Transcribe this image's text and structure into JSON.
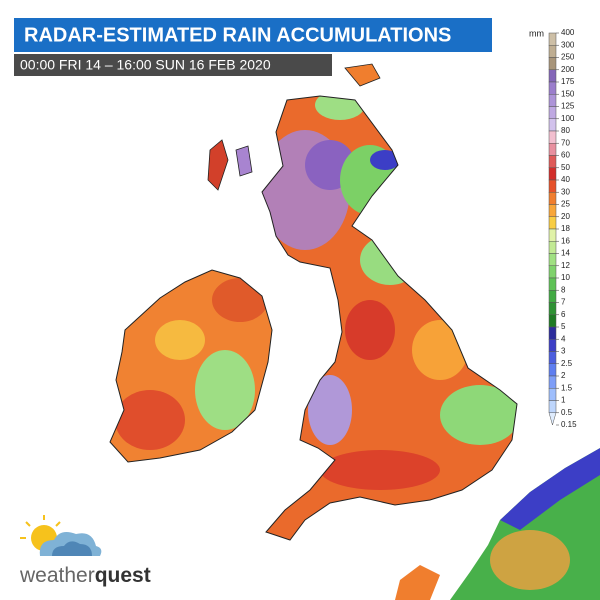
{
  "header": {
    "title": "RADAR-ESTIMATED RAIN ACCUMULATIONS",
    "subtitle": "00:00 FRI 14 – 16:00 SUN 16 FEB 2020"
  },
  "legend": {
    "unit": "mm",
    "labels": [
      "400",
      "300",
      "250",
      "200",
      "175",
      "150",
      "125",
      "100",
      "80",
      "70",
      "60",
      "50",
      "40",
      "30",
      "25",
      "20",
      "18",
      "16",
      "14",
      "12",
      "10",
      "8",
      "7",
      "6",
      "5",
      "4",
      "3",
      "2.5",
      "2",
      "1.5",
      "1",
      "0.5",
      "0.15"
    ],
    "colors": [
      "#cdbfa6",
      "#bfae92",
      "#a8957a",
      "#8466b8",
      "#9b7ecc",
      "#ad94d8",
      "#bfa9e2",
      "#d2c2ec",
      "#f2bfcf",
      "#e8909f",
      "#df5a58",
      "#d22d2a",
      "#e6512a",
      "#f07e2e",
      "#f8a63a",
      "#f8cd44",
      "#e0f2a8",
      "#c2ea94",
      "#a0e082",
      "#7fd26c",
      "#5ec256",
      "#42aa44",
      "#2f9234",
      "#1f7a24",
      "#2c2c9c",
      "#3c3ec6",
      "#4c5ede",
      "#5e7ef0",
      "#7e9ef8",
      "#9ebefc",
      "#bed6fc",
      "#dfecfd"
    ]
  },
  "logo": {
    "word_1": "weather",
    "word_2": "quest"
  }
}
